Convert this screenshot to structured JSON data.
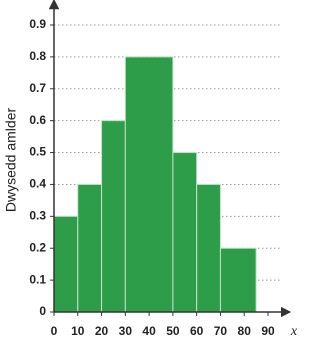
{
  "chart_data": {
    "type": "histogram",
    "y_label": "Dwysedd amlder",
    "x_label": "x",
    "bins": [
      0,
      10,
      20,
      30,
      50,
      60,
      70,
      85
    ],
    "values": [
      0.3,
      0.4,
      0.6,
      0.8,
      0.5,
      0.4,
      0.2
    ],
    "color": "#2e9d4a",
    "xlim": [
      0,
      90
    ],
    "xticks": [
      0,
      10,
      20,
      30,
      40,
      50,
      60,
      70,
      80,
      90
    ],
    "ylim": [
      0,
      0.9
    ],
    "yticks": [
      0,
      0.1,
      0.2,
      0.3,
      0.4,
      0.5,
      0.6,
      0.7,
      0.8,
      0.9
    ],
    "grid": true
  }
}
